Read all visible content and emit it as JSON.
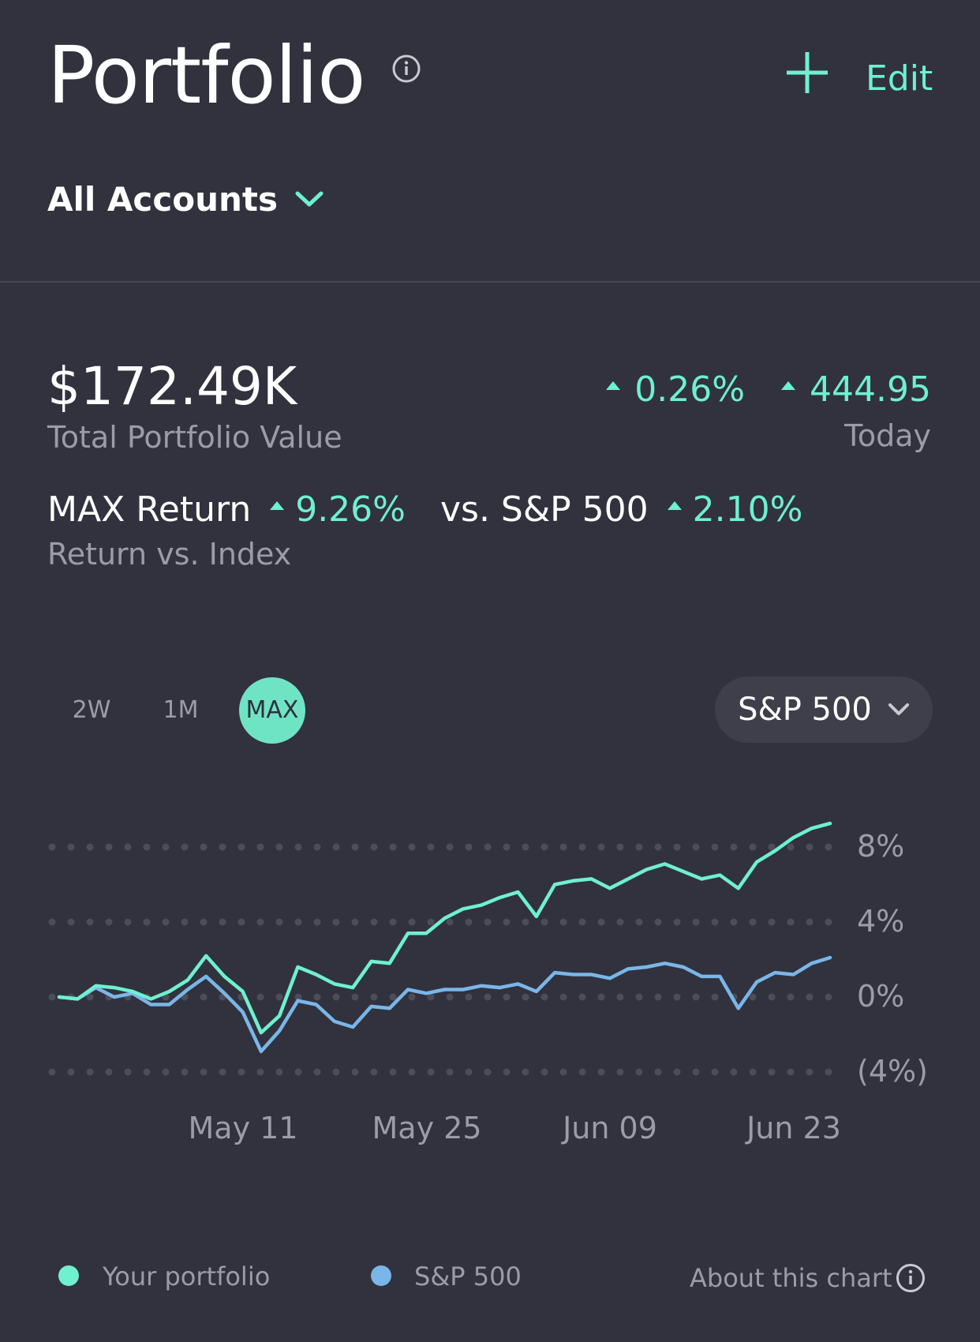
{
  "header": {
    "title": "Portfolio",
    "edit_label": "Edit",
    "account_selector": "All Accounts"
  },
  "summary": {
    "total_value": "$172.49K",
    "total_label": "Total Portfolio Value",
    "today_pct": "0.26%",
    "today_amount": "444.95",
    "today_label": "Today",
    "return_label": "MAX Return",
    "return_pct": "9.26%",
    "vs_label": "vs. S&P 500",
    "vs_pct": "2.10%",
    "return_sub": "Return vs. Index"
  },
  "ranges": [
    "2W",
    "1M",
    "MAX"
  ],
  "selected_range": "MAX",
  "index_select": "S&P 500",
  "legend": {
    "portfolio": "Your portfolio",
    "index": "S&P 500",
    "about": "About this chart"
  },
  "colors": {
    "accent": "#6ff0cf",
    "index_line": "#7ab6e8",
    "background": "#31323e"
  },
  "chart_data": {
    "type": "line",
    "x_ticks": [
      "May 11",
      "May 25",
      "Jun 09",
      "Jun 23"
    ],
    "y_ticks": [
      "8%",
      "4%",
      "0%",
      "(4%)"
    ],
    "y_tick_values": [
      8,
      4,
      0,
      -4
    ],
    "ylim": [
      -4,
      8
    ],
    "grid": true,
    "series": [
      {
        "name": "Your portfolio",
        "color": "#6ff0cf",
        "values": [
          0,
          -0.1,
          0.6,
          0.5,
          0.3,
          -0.1,
          0.3,
          0.9,
          2.2,
          1.1,
          0.3,
          -1.9,
          -1.0,
          1.6,
          1.2,
          0.7,
          0.5,
          1.9,
          1.8,
          3.4,
          3.4,
          4.2,
          4.7,
          4.9,
          5.3,
          5.6,
          4.3,
          6.0,
          6.2,
          6.3,
          5.8,
          6.3,
          6.8,
          7.1,
          6.7,
          6.3,
          6.5,
          5.8,
          7.2,
          7.8,
          8.5,
          9.0,
          9.26
        ]
      },
      {
        "name": "S&P 500",
        "color": "#7ab6e8",
        "values": [
          0,
          -0.1,
          0.5,
          0.0,
          0.2,
          -0.4,
          -0.4,
          0.4,
          1.1,
          0.2,
          -0.8,
          -2.9,
          -1.8,
          -0.2,
          -0.4,
          -1.3,
          -1.6,
          -0.5,
          -0.6,
          0.4,
          0.2,
          0.4,
          0.4,
          0.6,
          0.5,
          0.7,
          0.3,
          1.3,
          1.2,
          1.2,
          1.0,
          1.5,
          1.6,
          1.8,
          1.6,
          1.1,
          1.1,
          -0.6,
          0.8,
          1.3,
          1.2,
          1.8,
          2.1
        ]
      }
    ]
  }
}
